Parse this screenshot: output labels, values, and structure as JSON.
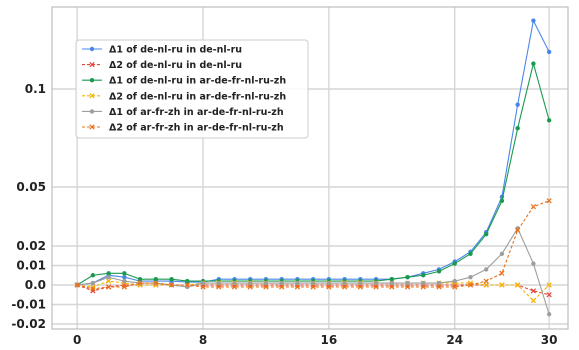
{
  "chart_data": {
    "type": "line",
    "x": [
      0,
      1,
      2,
      3,
      4,
      5,
      6,
      7,
      8,
      9,
      10,
      11,
      12,
      13,
      14,
      15,
      16,
      17,
      18,
      19,
      20,
      21,
      22,
      23,
      24,
      25,
      26,
      27,
      28,
      29,
      30
    ],
    "xlim": [
      -1.6,
      31.2
    ],
    "ylim": [
      -0.022,
      0.142
    ],
    "xticks": [
      0,
      8,
      16,
      24,
      30
    ],
    "xtick_labels": [
      "0",
      "8",
      "16",
      "24",
      "30"
    ],
    "yticks": [
      -0.02,
      -0.01,
      0.0,
      0.01,
      0.02,
      0.05,
      0.1
    ],
    "ytick_labels": [
      "-0.02",
      "-0.01",
      "0.0",
      "0.01",
      "0.02",
      "0.05",
      "0.1"
    ],
    "grid": true,
    "legend_position": "upper-left",
    "series": [
      {
        "name": "Δ1 of de-nl-ru in de-nl-ru",
        "color": "#4a86e8",
        "linestyle": "solid",
        "marker": "circle",
        "values": [
          0,
          0.001,
          0.005,
          0.004,
          0.002,
          0.002,
          0.002,
          0.0015,
          0.0015,
          0.003,
          0.003,
          0.003,
          0.003,
          0.003,
          0.003,
          0.003,
          0.003,
          0.003,
          0.003,
          0.003,
          0.003,
          0.004,
          0.006,
          0.008,
          0.012,
          0.017,
          0.027,
          0.045,
          0.092,
          0.135,
          0.119
        ]
      },
      {
        "name": "Δ2 of de-nl-ru in de-nl-ru",
        "color": "#e8423a",
        "linestyle": "dashed",
        "marker": "x",
        "values": [
          0,
          -0.003,
          -0.001,
          0,
          0,
          0,
          0,
          0,
          0,
          0,
          0,
          0,
          0,
          0,
          0,
          0,
          0,
          0,
          0,
          0,
          0,
          0,
          0,
          0,
          0,
          0,
          0,
          0,
          0,
          -0.003,
          -0.005
        ]
      },
      {
        "name": "Δ1 of de-nl-ru in ar-de-fr-nl-ru-zh",
        "color": "#1a9a50",
        "linestyle": "solid",
        "marker": "circle",
        "values": [
          0,
          0.005,
          0.006,
          0.006,
          0.003,
          0.003,
          0.003,
          0.002,
          0.002,
          0.002,
          0.002,
          0.002,
          0.002,
          0.002,
          0.002,
          0.002,
          0.002,
          0.002,
          0.002,
          0.002,
          0.003,
          0.004,
          0.005,
          0.007,
          0.011,
          0.016,
          0.026,
          0.043,
          0.08,
          0.113,
          0.084
        ]
      },
      {
        "name": "Δ2 of de-nl-ru in ar-de-fr-nl-ru-zh",
        "color": "#f4b400",
        "linestyle": "dashed",
        "marker": "x",
        "values": [
          0,
          -0.001,
          0.002,
          0.001,
          0,
          0,
          0,
          0,
          0.001,
          0.001,
          0.001,
          0.001,
          0.001,
          0.001,
          0.001,
          0.001,
          0.001,
          0.001,
          0.001,
          0.001,
          0.001,
          0.001,
          0.001,
          0.001,
          0.001,
          0.001,
          0,
          0,
          0,
          -0.008,
          0
        ]
      },
      {
        "name": "Δ1 of ar-fr-zh in ar-de-fr-nl-ru-zh",
        "color": "#9e9e9e",
        "linestyle": "solid",
        "marker": "circle",
        "values": [
          0,
          0.001,
          0.004,
          0.002,
          0.001,
          0.001,
          0,
          -0.001,
          0.001,
          0.001,
          0.001,
          0.001,
          0.001,
          0.001,
          0.001,
          0.001,
          0.001,
          0.001,
          0.001,
          0.001,
          0.001,
          0.001,
          0.001,
          0.001,
          0.002,
          0.004,
          0.008,
          0.016,
          0.029,
          0.011,
          -0.015
        ]
      },
      {
        "name": "Δ2 of ar-fr-zh in ar-de-fr-nl-ru-zh",
        "color": "#e8711a",
        "linestyle": "dashed",
        "marker": "x",
        "values": [
          0,
          -0.002,
          -0.001,
          -0.001,
          0.001,
          0.001,
          0,
          0,
          -0.001,
          -0.001,
          -0.001,
          -0.001,
          -0.001,
          -0.001,
          -0.001,
          -0.001,
          -0.001,
          -0.001,
          -0.001,
          -0.001,
          -0.001,
          -0.001,
          -0.001,
          -0.001,
          -0.001,
          0,
          0.002,
          0.006,
          0.028,
          0.04,
          0.043
        ]
      }
    ]
  }
}
